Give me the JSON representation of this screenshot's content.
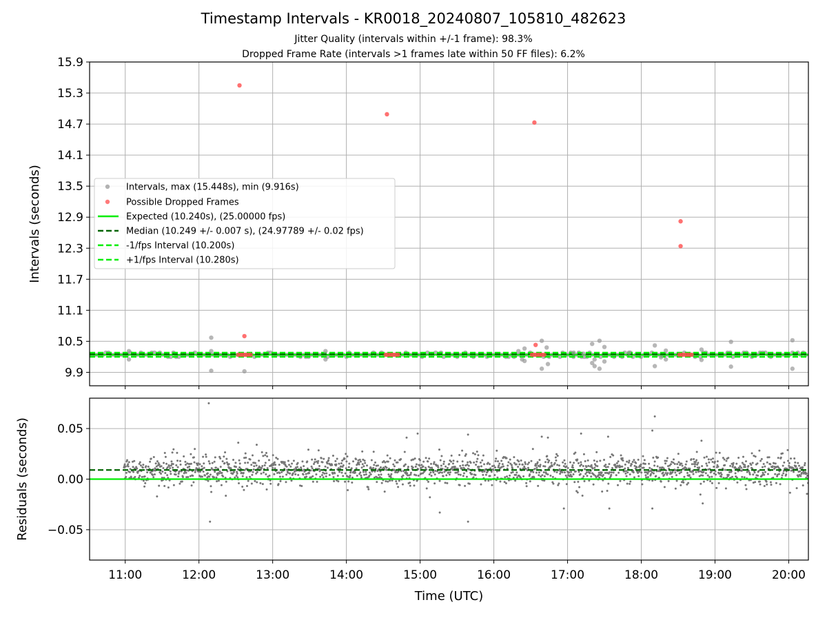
{
  "chart_data": [
    {
      "type": "scatter",
      "title": "Timestamp Intervals - KR0018_20240807_105810_482623",
      "subtitle_lines": [
        "Jitter Quality (intervals within +/-1 frame): 98.3%",
        "Dropped Frame Rate (intervals >1 frames late within 50 FF files): 6.2%"
      ],
      "ylabel": "Intervals (seconds)",
      "xlim": [
        "10:31",
        "20:16"
      ],
      "ylim": [
        9.64,
        15.9
      ],
      "y_ticks": [
        "9.9",
        "10.5",
        "11.1",
        "11.7",
        "12.3",
        "12.9",
        "13.5",
        "14.1",
        "14.7",
        "15.3",
        "15.9"
      ],
      "grid": true,
      "legend_position": "center-left",
      "series": [
        {
          "name": "Intervals, max (15.448s), min (9.916s)",
          "kind": "scatter",
          "color": "#999999",
          "points": [
            [
              "11:03",
              10.31
            ],
            [
              "11:03",
              10.15
            ],
            [
              "12:10",
              10.57
            ],
            [
              "12:10",
              10.31
            ],
            [
              "12:10",
              9.93
            ],
            [
              "12:37",
              9.92
            ],
            [
              "13:43",
              10.31
            ],
            [
              "13:43",
              10.15
            ],
            [
              "16:20",
              10.31
            ],
            [
              "16:23",
              10.15
            ],
            [
              "16:25",
              10.36
            ],
            [
              "16:25",
              10.12
            ],
            [
              "16:39",
              10.51
            ],
            [
              "16:39",
              9.97
            ],
            [
              "16:43",
              10.38
            ],
            [
              "16:44",
              10.06
            ],
            [
              "17:05",
              10.28
            ],
            [
              "17:13",
              10.26
            ],
            [
              "17:20",
              10.45
            ],
            [
              "17:20",
              10.08
            ],
            [
              "17:22",
              10.02
            ],
            [
              "17:22",
              10.15
            ],
            [
              "17:26",
              10.51
            ],
            [
              "17:26",
              9.97
            ],
            [
              "17:30",
              10.39
            ],
            [
              "17:30",
              10.11
            ],
            [
              "17:50",
              10.28
            ],
            [
              "18:11",
              10.42
            ],
            [
              "18:11",
              10.02
            ],
            [
              "18:16",
              10.19
            ],
            [
              "18:20",
              10.32
            ],
            [
              "18:20",
              10.15
            ],
            [
              "18:49",
              10.34
            ],
            [
              "18:49",
              10.14
            ],
            [
              "19:13",
              10.49
            ],
            [
              "19:13",
              10.01
            ],
            [
              "20:03",
              10.52
            ],
            [
              "20:03",
              9.97
            ]
          ],
          "dense_band": {
            "x_range": [
              "10:31",
              "20:16"
            ],
            "y_center": 10.24,
            "note_values": [
              10.2,
              10.28
            ]
          }
        },
        {
          "name": "Possible Dropped Frames",
          "kind": "scatter",
          "color": "#ff4d4d",
          "points": [
            [
              "12:33",
              15.448
            ],
            [
              "14:33",
              14.89
            ],
            [
              "16:33",
              14.73
            ],
            [
              "18:32",
              12.82
            ],
            [
              "18:32",
              12.34
            ],
            [
              "12:37",
              10.6
            ],
            [
              "16:34",
              10.43
            ],
            [
              "12:32",
              10.24
            ],
            [
              "12:34",
              10.24
            ],
            [
              "12:36",
              10.24
            ],
            [
              "12:38",
              10.24
            ],
            [
              "12:40",
              10.24
            ],
            [
              "12:42",
              10.24
            ],
            [
              "14:32",
              10.24
            ],
            [
              "14:34",
              10.24
            ],
            [
              "14:36",
              10.24
            ],
            [
              "14:38",
              10.24
            ],
            [
              "14:40",
              10.24
            ],
            [
              "14:42",
              10.24
            ],
            [
              "16:31",
              10.24
            ],
            [
              "16:33",
              10.24
            ],
            [
              "16:35",
              10.24
            ],
            [
              "16:37",
              10.24
            ],
            [
              "16:39",
              10.24
            ],
            [
              "16:41",
              10.24
            ],
            [
              "18:31",
              10.24
            ],
            [
              "18:33",
              10.24
            ],
            [
              "18:35",
              10.24
            ],
            [
              "18:37",
              10.24
            ],
            [
              "18:39",
              10.24
            ],
            [
              "18:41",
              10.24
            ]
          ]
        },
        {
          "name": "Expected (10.240s), (25.00000 fps)",
          "kind": "hline",
          "y": 10.24,
          "color": "#00ee00",
          "style": "solid"
        },
        {
          "name": "Median (10.249 +/- 0.007 s), (24.97789 +/- 0.02 fps)",
          "kind": "hline",
          "y": 10.249,
          "color": "#006400",
          "style": "dashed"
        },
        {
          "name": "-1/fps Interval (10.200s)",
          "kind": "hline",
          "y": 10.2,
          "color": "#00ee00",
          "style": "dashed"
        },
        {
          "name": "+1/fps Interval (10.280s)",
          "kind": "hline",
          "y": 10.28,
          "color": "#00ee00",
          "style": "dashed"
        }
      ]
    },
    {
      "type": "scatter",
      "xlabel": "Time (UTC)",
      "ylabel": "Residuals (seconds)",
      "xlim": [
        "10:31",
        "20:16"
      ],
      "ylim": [
        -0.08,
        0.08
      ],
      "x_ticks": [
        "11:00",
        "12:00",
        "13:00",
        "14:00",
        "15:00",
        "16:00",
        "17:00",
        "18:00",
        "19:00",
        "20:00"
      ],
      "y_ticks": [
        "−0.05",
        "0.00",
        "0.05"
      ],
      "grid": true,
      "series": [
        {
          "kind": "scatter",
          "color": "#777777",
          "points": [
            [
              "12:08",
              0.075
            ],
            [
              "12:09",
              -0.042
            ],
            [
              "18:11",
              0.062
            ],
            [
              "18:09",
              0.048
            ],
            [
              "18:09",
              -0.029
            ],
            [
              "15:39",
              0.044
            ],
            [
              "15:39",
              -0.042
            ],
            [
              "14:58",
              0.045
            ],
            [
              "15:16",
              -0.033
            ],
            [
              "16:57",
              -0.029
            ],
            [
              "17:11",
              0.045
            ],
            [
              "17:33",
              0.042
            ],
            [
              "17:34",
              -0.029
            ],
            [
              "16:39",
              0.042
            ],
            [
              "16:44",
              0.041
            ],
            [
              "18:49",
              0.038
            ],
            [
              "18:50",
              -0.024
            ],
            [
              "12:32",
              0.036
            ],
            [
              "12:47",
              0.034
            ],
            [
              "14:49",
              0.041
            ]
          ],
          "dense_band": {
            "x_range": [
              "10:59",
              "20:16"
            ],
            "y_range": [
              -0.02,
              0.03
            ],
            "center": 0.009
          }
        },
        {
          "kind": "hline",
          "y": 0.009,
          "color": "#006400",
          "style": "dashed"
        },
        {
          "kind": "hline",
          "y": 0.0,
          "color": "#00ee00",
          "style": "solid"
        }
      ]
    }
  ]
}
